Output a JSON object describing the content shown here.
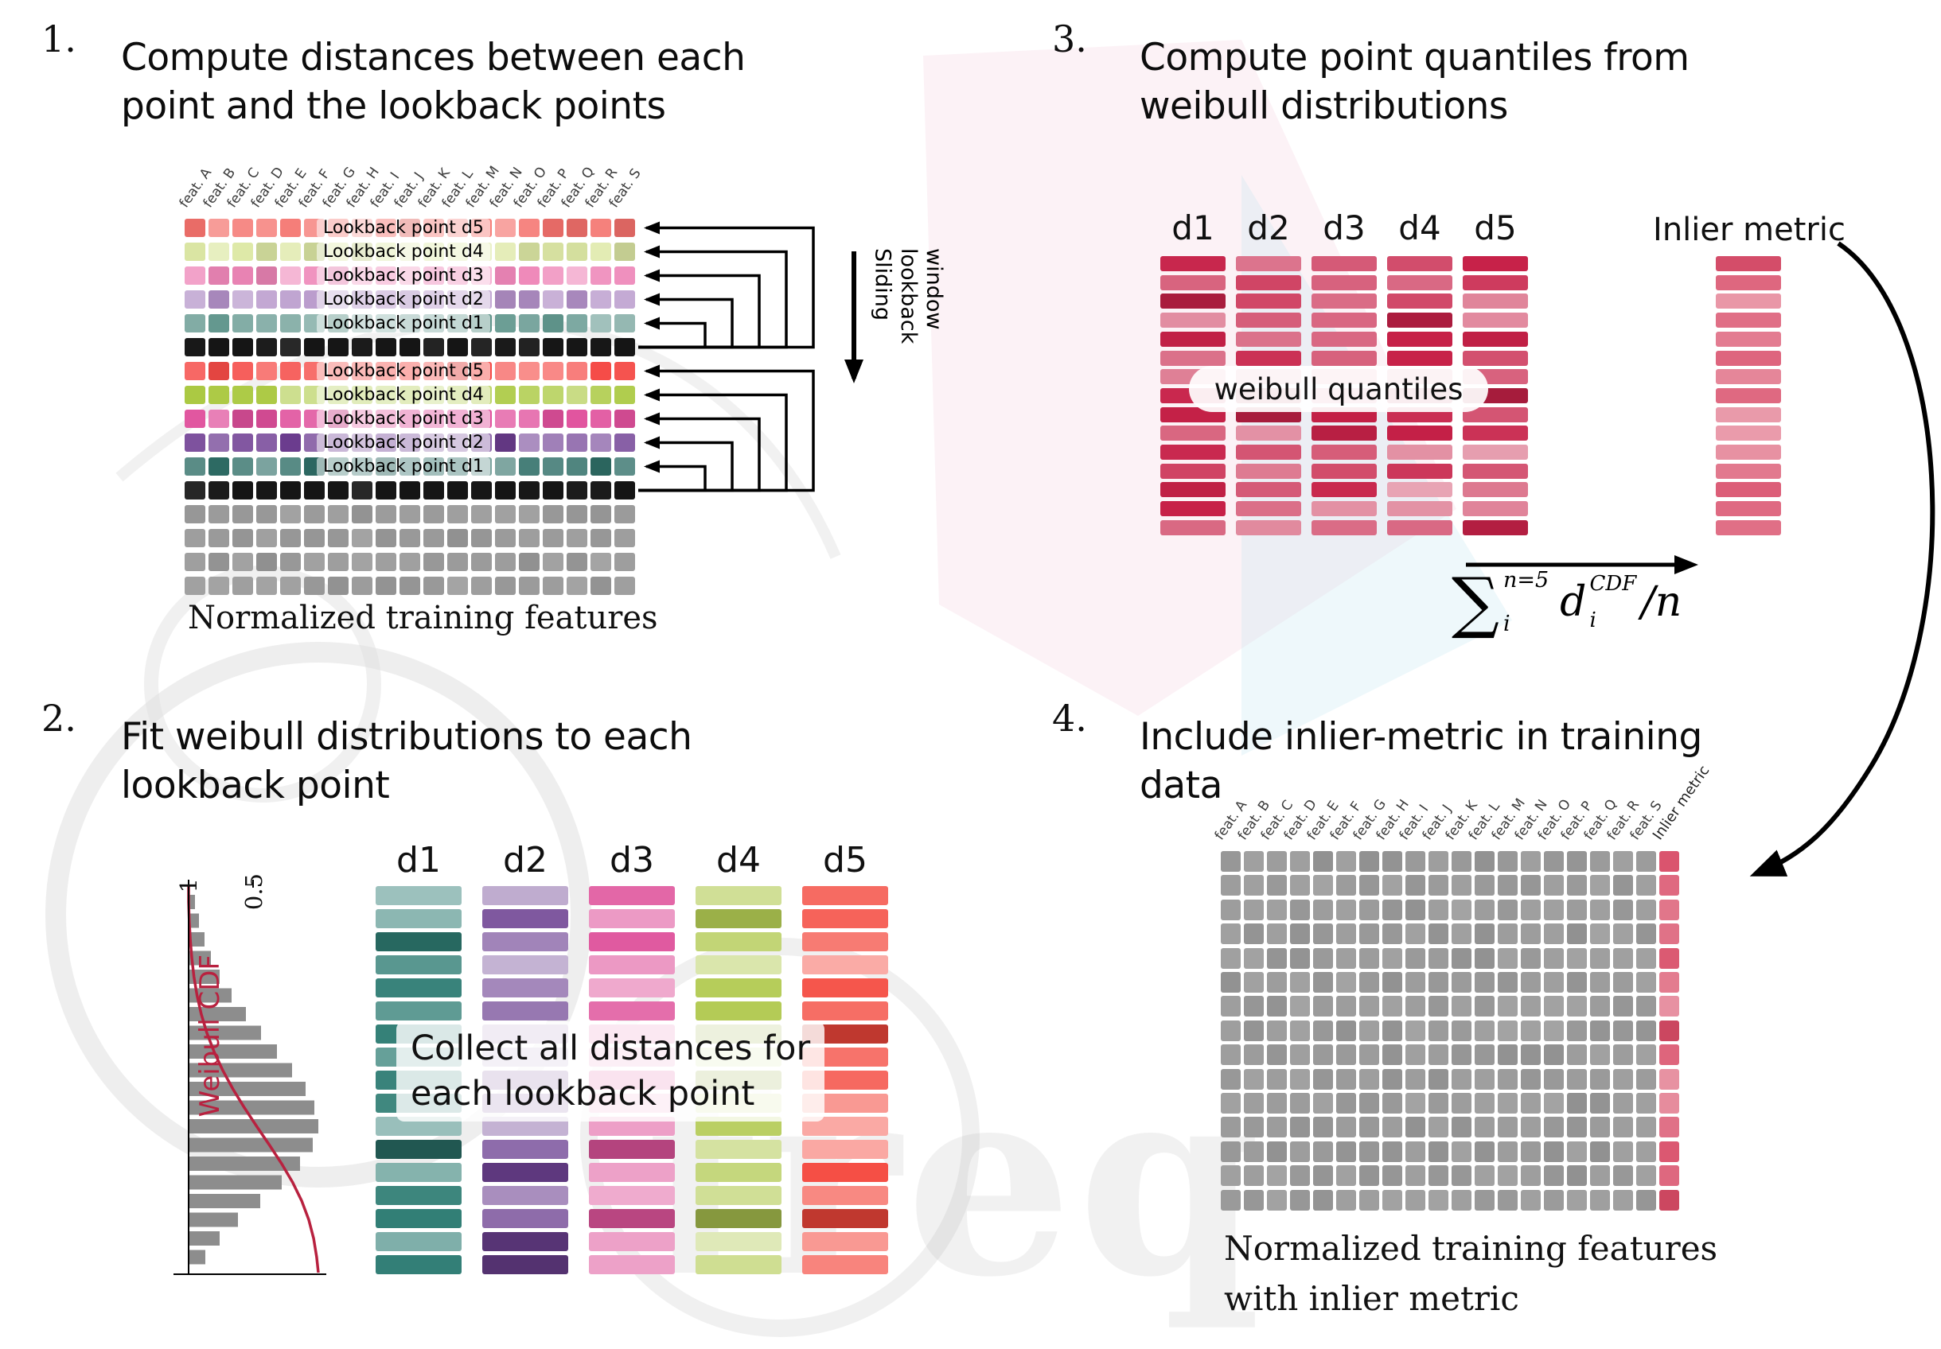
{
  "watermark": {
    "text": "freq"
  },
  "panels": {
    "p1": {
      "number": "1.",
      "title": [
        "Compute distances between each",
        "point and the lookback points"
      ],
      "features": [
        "feat. A",
        "feat. B",
        "feat. C",
        "feat. D",
        "feat. E",
        "feat. F",
        "feat. G",
        "feat. H",
        "feat. I",
        "feat. J",
        "feat. K",
        "feat. L",
        "feat. M",
        "feat. N",
        "feat. O",
        "feat. P",
        "feat. Q",
        "feat. R",
        "feat. S"
      ],
      "rows": [
        {
          "type": "lookback",
          "label": "Lookback point d5",
          "color": "#f4716c"
        },
        {
          "type": "lookback",
          "label": "Lookback point d4",
          "color": "#dde8a5"
        },
        {
          "type": "lookback",
          "label": "Lookback point d3",
          "color": "#ee86b8"
        },
        {
          "type": "lookback",
          "label": "Lookback point d2",
          "color": "#b18fc6"
        },
        {
          "type": "lookback",
          "label": "Lookback point d1",
          "color": "#61968d"
        },
        {
          "type": "current",
          "label": "",
          "color": "#161616"
        },
        {
          "type": "lookback",
          "label": "Lookback point d5",
          "color": "#f54a46"
        },
        {
          "type": "lookback",
          "label": "Lookback point d4",
          "color": "#a9c83e"
        },
        {
          "type": "lookback",
          "label": "Lookback point d3",
          "color": "#e0509c"
        },
        {
          "type": "lookback",
          "label": "Lookback point d2",
          "color": "#6f3e93"
        },
        {
          "type": "lookback",
          "label": "Lookback point d1",
          "color": "#2f6e67"
        },
        {
          "type": "current",
          "label": "",
          "color": "#161616"
        },
        {
          "type": "future",
          "label": "",
          "color": "#9c9c9c"
        },
        {
          "type": "future",
          "label": "",
          "color": "#9c9c9c"
        },
        {
          "type": "future",
          "label": "",
          "color": "#9c9c9c"
        },
        {
          "type": "future",
          "label": "",
          "color": "#9c9c9c"
        }
      ],
      "sliding_label": [
        "Sliding",
        "lookback",
        "window"
      ],
      "caption": "Normalized training features"
    },
    "p2": {
      "number": "2.",
      "title": [
        "Fit weibull distributions to each",
        "lookback point"
      ],
      "plot": {
        "ylabel": "Weibull CDF",
        "tick_1": "1",
        "tick_05": "0.5",
        "hist": [
          0.05,
          0.08,
          0.12,
          0.17,
          0.24,
          0.33,
          0.44,
          0.56,
          0.68,
          0.8,
          0.9,
          0.97,
          1.0,
          0.96,
          0.86,
          0.72,
          0.55,
          0.38,
          0.24,
          0.13
        ],
        "curve_color": "#b8213f",
        "bar_color": "#8d8d8d"
      },
      "columns": [
        {
          "label": "d1",
          "color": "#2f7d74"
        },
        {
          "label": "d2",
          "color": "#6d4192"
        },
        {
          "label": "d3",
          "color": "#df549c"
        },
        {
          "label": "d4",
          "color": "#b2ca52"
        },
        {
          "label": "d5",
          "color": "#f4473c"
        }
      ],
      "overlay": [
        "Collect all distances for",
        "each lookback point"
      ]
    },
    "p3": {
      "number": "3.",
      "title": [
        "Compute point quantiles from",
        "weibull distributions"
      ],
      "col_labels": [
        "d1",
        "d2",
        "d3",
        "d4",
        "d5"
      ],
      "bar_color": "#c72148",
      "overlay": "weibull quantiles",
      "inlier_label": "Inlier metric",
      "inlier_color": "#d94f6b",
      "formula": {
        "sum": "∑",
        "sum_sup": "n=5",
        "sum_sub": "i",
        "var": "d",
        "var_sup": "CDF",
        "var_sub": "i",
        "tail": "/n"
      }
    },
    "p4": {
      "number": "4.",
      "title": [
        "Include inlier-metric in training",
        "data"
      ],
      "features": [
        "feat. A",
        "feat. B",
        "feat. C",
        "feat. D",
        "feat. E",
        "feat. F",
        "feat. G",
        "feat. H",
        "feat. I",
        "feat. J",
        "feat. K",
        "feat. L",
        "feat. M",
        "feat. N",
        "feat. O",
        "feat. P",
        "feat. Q",
        "feat. R",
        "feat. S"
      ],
      "inlier_header": "Inlier metric",
      "cell_color": "#9c9c9c",
      "inlier_color": "#d84b66",
      "caption": [
        "Normalized training features",
        "with inlier metric"
      ]
    }
  }
}
